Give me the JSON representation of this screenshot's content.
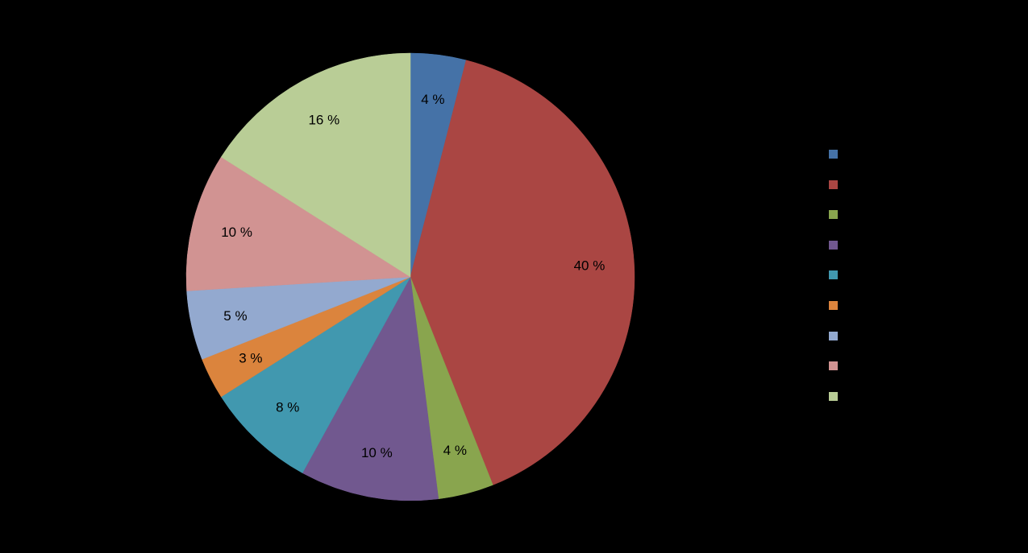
{
  "chart_data": {
    "type": "pie",
    "slices": [
      {
        "label": "4 %",
        "value": 4,
        "color": "#4572A7"
      },
      {
        "label": "40 %",
        "value": 40,
        "color": "#AA4643"
      },
      {
        "label": "4 %",
        "value": 4,
        "color": "#89A54E"
      },
      {
        "label": "10 %",
        "value": 10,
        "color": "#71588F"
      },
      {
        "label": "8 %",
        "value": 8,
        "color": "#4198AF"
      },
      {
        "label": "3 %",
        "value": 3,
        "color": "#DB843D"
      },
      {
        "label": "5 %",
        "value": 5,
        "color": "#93A9CF"
      },
      {
        "label": "10 %",
        "value": 10,
        "color": "#D19392"
      },
      {
        "label": "16 %",
        "value": 16,
        "color": "#B9CD96"
      }
    ],
    "legend": {
      "placement": "right",
      "entries": [
        "",
        "",
        "",
        "",
        "",
        "",
        "",
        "",
        ""
      ]
    },
    "background": "#000000",
    "label_color": "#000000"
  }
}
